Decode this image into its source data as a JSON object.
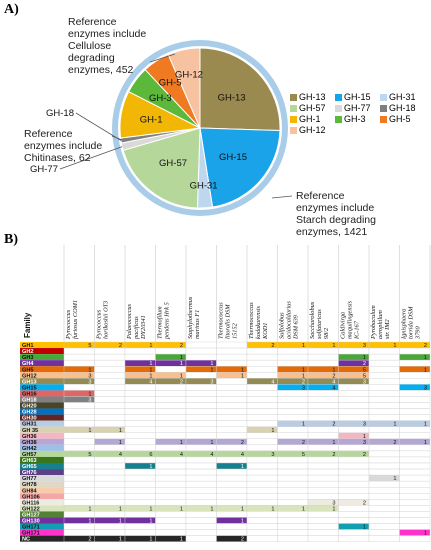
{
  "panel_a_label": "A)",
  "panel_b_label": "B)",
  "annotations": {
    "cellulose": [
      "Reference",
      "enzymes include",
      "Cellulose",
      "degrading",
      "enzymes, 452"
    ],
    "chitinases": [
      "Reference",
      "enzymes include",
      "Chitinases, 62"
    ],
    "starch": [
      "Reference",
      "enzymes include",
      "Starch degrading",
      "enzymes, 1421"
    ]
  },
  "colors": {
    "GH-13": "#9b8a4f",
    "GH-15": "#1aa3e8",
    "GH-31": "#bed7ee",
    "GH-57": "#b6d79a",
    "GH-77": "#d9d9d9",
    "GH-18": "#7f7f7f",
    "GH-1": "#f2b705",
    "GH-3": "#5bb83a",
    "GH-5": "#f07a22",
    "GH-12": "#f7c2a0",
    "ring": "#a9cde8"
  },
  "chart_data": [
    {
      "type": "pie",
      "categories": [
        "GH-13",
        "GH-15",
        "GH-31",
        "GH-57",
        "GH-77",
        "GH-18",
        "GH-1",
        "GH-3",
        "GH-5",
        "GH-12"
      ],
      "values": [
        25.5,
        22.0,
        3.0,
        20.0,
        1.5,
        1.0,
        9.5,
        5.5,
        5.5,
        6.5
      ],
      "slice_labels": [
        "GH-13",
        "GH-15",
        "GH-31",
        "GH-57",
        "GH-77",
        "GH-18",
        "GH-1",
        "GH-3",
        "GH-5",
        "GH-12"
      ],
      "legend": {
        "entries": [
          "GH-13",
          "GH-15",
          "GH-31",
          "GH-57",
          "GH-77",
          "GH-18",
          "GH-1",
          "GH-3",
          "GH-5",
          "GH-12"
        ],
        "placement": "right"
      }
    },
    {
      "type": "table",
      "column_header_title": "Family",
      "columns": [
        "Pyrococcus furiosus COM1",
        "Pyrococcus horikoshii OT3",
        "Palaeococcus pacificus DY20341",
        "Thermofilum pendens Hrk 5",
        "Staphylothermus marinus F1",
        "Thermococcus litoralis DSM 15152",
        "Thermococcus kodakarensis KOD1",
        "Sulfolobus acidocaldarius DSM 639",
        "Saccharolobus solfataricus 98/2",
        "Caldivirga maquilingensis IC-167",
        "Pyrobaculum aerophilum str. IM2",
        "Ignisphaera torrida DSM 3790"
      ],
      "rows": [
        {
          "family": "GH1",
          "color": "#ffc000",
          "values": [
            "5",
            "2",
            "1",
            "2",
            "",
            "",
            "2",
            "1",
            "1",
            "3",
            "1",
            "2"
          ]
        },
        {
          "family": "GH2",
          "color": "#c00000",
          "values": [
            "",
            "",
            "",
            "",
            "",
            "",
            "",
            "",
            "",
            "",
            "",
            ""
          ]
        },
        {
          "family": "GH3",
          "color": "#4aa83a",
          "values": [
            "",
            "",
            "",
            "1",
            "",
            "",
            "",
            "",
            "",
            "1",
            "",
            "1"
          ]
        },
        {
          "family": "GH4",
          "color": "#7030a0",
          "values": [
            "",
            "",
            "1",
            "1",
            "1",
            "",
            "",
            "",
            "",
            "2",
            "",
            ""
          ]
        },
        {
          "family": "GH5",
          "color": "#e36c09",
          "values": [
            "1",
            "",
            "1",
            "",
            "1",
            "1",
            "",
            "1",
            "1",
            "5",
            "",
            "1"
          ]
        },
        {
          "family": "GH12",
          "color": "#fabf8f",
          "values": [
            "3",
            "",
            "1",
            "1",
            "",
            "1",
            "",
            "1",
            "2",
            "5",
            "",
            ""
          ]
        },
        {
          "family": "GH13",
          "color": "#948a54",
          "values": [
            "3",
            "",
            "4",
            "2",
            "3",
            "",
            "4",
            "2",
            "4",
            "3",
            "",
            ""
          ]
        },
        {
          "family": "GH15",
          "color": "#00b0f0",
          "values": [
            "",
            "",
            "",
            "",
            "",
            "",
            "",
            "3",
            "4",
            "",
            "",
            "3"
          ]
        },
        {
          "family": "GH16",
          "color": "#e06666",
          "values": [
            "1",
            "",
            "",
            "",
            "",
            "",
            "",
            "",
            "",
            "",
            "",
            ""
          ]
        },
        {
          "family": "GH18",
          "color": "#808080",
          "values": [
            "3",
            "",
            "",
            "",
            "",
            "",
            "",
            "",
            "",
            "",
            "",
            ""
          ]
        },
        {
          "family": "GH20",
          "color": "#494529",
          "values": [
            "",
            "",
            "",
            "",
            "",
            "",
            "",
            "",
            "",
            "",
            "",
            ""
          ]
        },
        {
          "family": "GH28",
          "color": "#0070c0",
          "values": [
            "",
            "",
            "",
            "",
            "",
            "",
            "",
            "",
            "",
            "",
            "",
            ""
          ]
        },
        {
          "family": "GH30",
          "color": "#632523",
          "values": [
            "",
            "",
            "",
            "",
            "",
            "",
            "",
            "",
            "",
            "",
            "",
            ""
          ]
        },
        {
          "family": "GH31",
          "color": "#b8cce4",
          "values": [
            "",
            "",
            "",
            "",
            "",
            "",
            "",
            "1",
            "2",
            "3",
            "1",
            "1"
          ]
        },
        {
          "family": "GH 35",
          "color": "#d8d2b0",
          "values": [
            "1",
            "1",
            "",
            "",
            "",
            "",
            "1",
            "",
            "",
            "",
            "",
            ""
          ]
        },
        {
          "family": "GH36",
          "color": "#f4b6c2",
          "values": [
            "",
            "",
            "",
            "",
            "",
            "",
            "",
            "",
            "",
            "1",
            "",
            ""
          ]
        },
        {
          "family": "GH38",
          "color": "#b4a7d6",
          "values": [
            "",
            "1",
            "",
            "1",
            "1",
            "2",
            "",
            "2",
            "1",
            "3",
            "2",
            "1"
          ]
        },
        {
          "family": "GH42",
          "color": "#9bc2e6",
          "values": [
            "",
            "",
            "",
            "",
            "",
            "",
            "",
            "",
            "",
            "",
            "",
            ""
          ]
        },
        {
          "family": "GH57",
          "color": "#b6d79a",
          "values": [
            "5",
            "4",
            "6",
            "4",
            "4",
            "4",
            "3",
            "5",
            "2",
            "2",
            "",
            ""
          ]
        },
        {
          "family": "GH63",
          "color": "#38761d",
          "values": [
            "",
            "",
            "",
            "",
            "",
            "",
            "",
            "",
            "",
            "",
            "",
            ""
          ]
        },
        {
          "family": "GH65",
          "color": "#17808e",
          "values": [
            "",
            "",
            "1",
            "",
            "",
            "1",
            "",
            "",
            "",
            "",
            "",
            ""
          ]
        },
        {
          "family": "GH76",
          "color": "#5b3f86",
          "values": [
            "",
            "",
            "",
            "",
            "",
            "",
            "",
            "",
            "",
            "",
            "",
            ""
          ]
        },
        {
          "family": "GH77",
          "color": "#d9d9d9",
          "values": [
            "",
            "",
            "",
            "",
            "",
            "",
            "",
            "",
            "",
            "",
            "1",
            ""
          ]
        },
        {
          "family": "GH78",
          "color": "#ddd9c4",
          "values": [
            "",
            "",
            "",
            "",
            "",
            "",
            "",
            "",
            "",
            "",
            "",
            ""
          ]
        },
        {
          "family": "GH84",
          "color": "#f8cbad",
          "values": [
            "",
            "",
            "",
            "",
            "",
            "",
            "",
            "",
            "",
            "",
            "",
            ""
          ]
        },
        {
          "family": "GH106",
          "color": "#f4a7a7",
          "values": [
            "",
            "",
            "",
            "",
            "",
            "",
            "",
            "",
            "",
            "",
            "",
            ""
          ]
        },
        {
          "family": "GH116",
          "color": "#eeece1",
          "values": [
            "",
            "",
            "",
            "",
            "",
            "",
            "",
            "",
            "3",
            "2",
            "",
            ""
          ]
        },
        {
          "family": "GH122",
          "color": "#d8e4bc",
          "values": [
            "1",
            "1",
            "1",
            "1",
            "1",
            "1",
            "1",
            "1",
            "1",
            "",
            "",
            ""
          ]
        },
        {
          "family": "GH127",
          "color": "#548235",
          "values": [
            "",
            "",
            "",
            "",
            "",
            "",
            "",
            "",
            "",
            "",
            "",
            ""
          ]
        },
        {
          "family": "GH130",
          "color": "#7030a0",
          "values": [
            "1",
            "1",
            "1",
            "",
            "",
            "1",
            "",
            "",
            "",
            "",
            "",
            ""
          ]
        },
        {
          "family": "GH171",
          "color": "#11a0b0",
          "values": [
            "",
            "",
            "",
            "",
            "",
            "",
            "",
            "",
            "",
            "1",
            "",
            ""
          ]
        },
        {
          "family": "GH171",
          "color": "#ff33cc",
          "values": [
            "",
            "",
            "",
            "",
            "",
            "",
            "",
            "",
            "",
            "",
            "",
            "1"
          ]
        },
        {
          "family": "NC",
          "color": "#262626",
          "values": [
            "2",
            "1",
            "1",
            "1",
            "",
            "2",
            "",
            "",
            "",
            "",
            "",
            ""
          ]
        }
      ]
    }
  ]
}
